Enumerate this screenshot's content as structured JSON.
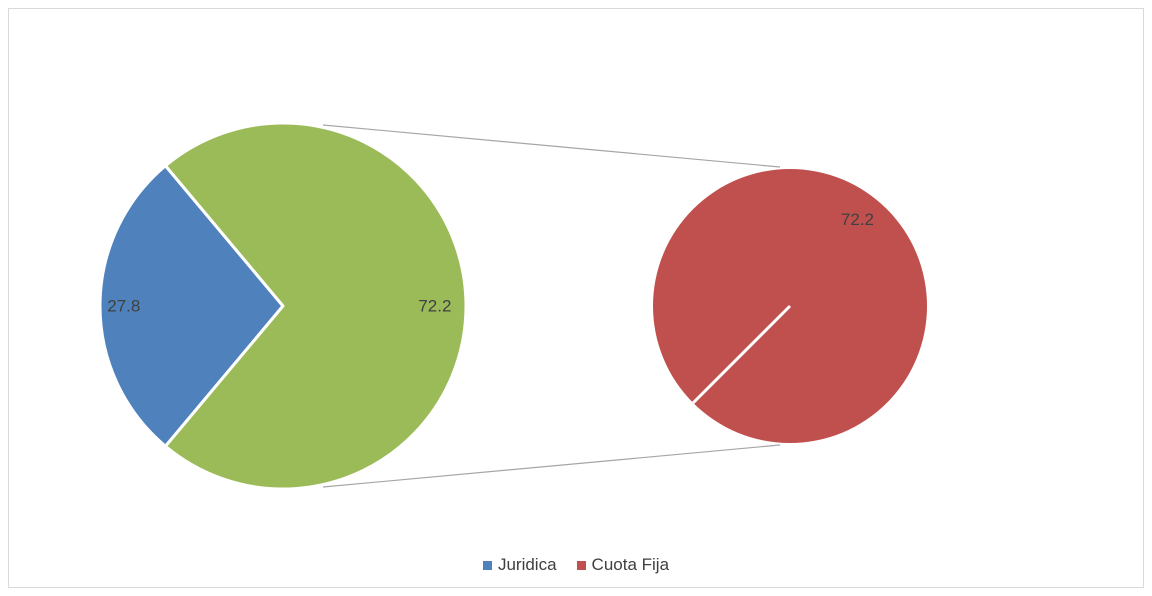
{
  "chart_data": {
    "type": "pie",
    "subtype": "pie-of-pie",
    "main_pie": {
      "slices": [
        {
          "name": "Juridica",
          "value": 27.8,
          "label": "27.8",
          "color": "#4f81bd"
        },
        {
          "name": "Cuota Fija",
          "value": 72.2,
          "label": "72.2",
          "color": "#9bbb59"
        }
      ]
    },
    "secondary_pie": {
      "slices": [
        {
          "name": "Cuota Fija",
          "value": 72.2,
          "label": "72.2",
          "color": "#c0504d"
        }
      ]
    },
    "legend": {
      "placement": "bottom",
      "entries": [
        {
          "name": "Juridica",
          "color": "#4f81bd"
        },
        {
          "name": "Cuota Fija",
          "color": "#c0504d"
        }
      ]
    }
  }
}
